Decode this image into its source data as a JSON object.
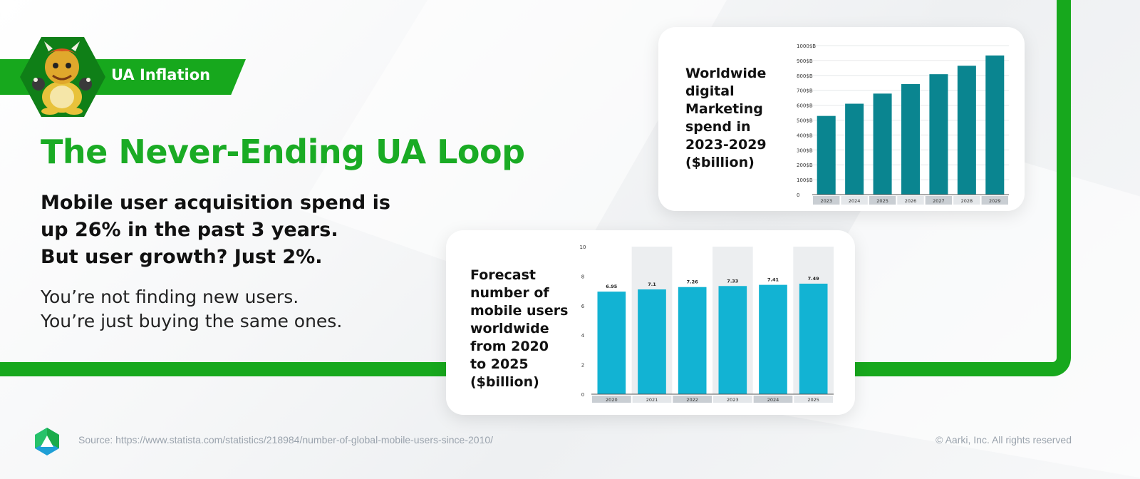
{
  "tag": {
    "label": "UA Inflation"
  },
  "headline": "The Never-Ending UA Loop",
  "subhead": [
    "Mobile user acquisition spend is",
    "up 26% in the past 3 years.",
    "But user growth? Just 2%."
  ],
  "body": [
    "You’re not finding new users.",
    "You’re just buying the same ones."
  ],
  "footer": {
    "source": "Source: https://www.statista.com/statistics/218984/number-of-global-mobile-users-since-2010/",
    "copyright": "© Aarki, Inc. All rights reserved"
  },
  "colors": {
    "brand_green": "#17a81d",
    "chart1_bar": "#0a8590",
    "chart2_bar": "#12b3d3",
    "logo_green": "#1aab4a",
    "logo_blue": "#1f9fd6"
  },
  "chart_data": [
    {
      "type": "bar",
      "title_lines": [
        "Worldwide",
        "digital",
        "Marketing",
        "spend in",
        "2023-2029",
        "($billion)"
      ],
      "categories": [
        "2023",
        "2024",
        "2025",
        "2026",
        "2027",
        "2028",
        "2029"
      ],
      "values": [
        528,
        610,
        678,
        742,
        808,
        865,
        934
      ],
      "ylim": [
        0,
        1000
      ],
      "yticks": [
        0,
        100,
        200,
        300,
        400,
        500,
        600,
        700,
        800,
        900,
        1000
      ],
      "ytick_labels": [
        "0",
        "100$B",
        "200$B",
        "300$B",
        "400$B",
        "500$B",
        "600$B",
        "700$B",
        "800$B",
        "900$B",
        "1000$B"
      ],
      "grid": true,
      "data_labels": false
    },
    {
      "type": "bar",
      "title_lines": [
        "Forecast",
        "number of",
        "mobile users",
        "worldwide",
        "from 2020",
        "to 2025",
        "($billion)"
      ],
      "categories": [
        "2020",
        "2021",
        "2022",
        "2023",
        "2024",
        "2025"
      ],
      "values": [
        6.95,
        7.1,
        7.26,
        7.33,
        7.41,
        7.49
      ],
      "value_labels": [
        "6.95",
        "7.1",
        "7.26",
        "7.33",
        "7.41",
        "7.49"
      ],
      "ylim": [
        0,
        10
      ],
      "yticks": [
        0,
        2,
        4,
        6,
        8,
        10
      ],
      "ytick_labels": [
        "0",
        "2",
        "4",
        "6",
        "8",
        "10"
      ],
      "grid": false,
      "data_labels": true
    }
  ]
}
